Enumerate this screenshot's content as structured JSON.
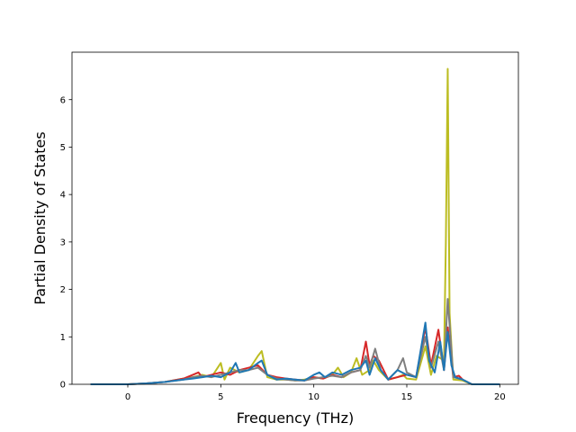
{
  "chart_data": {
    "type": "line",
    "title": "",
    "xlabel": "Frequency (THz)",
    "ylabel": "Partial Density of States",
    "xlim": [
      -3.0,
      21.0
    ],
    "ylim": [
      0,
      7.0
    ],
    "xticks": [
      0,
      5,
      10,
      15,
      20
    ],
    "yticks": [
      0,
      1,
      2,
      3,
      4,
      5,
      6
    ],
    "grid": false,
    "legend": "none",
    "series": [
      {
        "color": "#bcbd22",
        "x": [
          -2.0,
          0.0,
          1.0,
          2.0,
          3.0,
          3.5,
          4.0,
          4.5,
          5.0,
          5.2,
          5.5,
          6.0,
          6.5,
          7.0,
          7.2,
          7.5,
          8.0,
          8.5,
          9.0,
          9.5,
          10.0,
          10.5,
          11.0,
          11.3,
          11.6,
          12.0,
          12.3,
          12.6,
          13.0,
          13.2,
          13.5,
          14.0,
          14.5,
          14.8,
          15.0,
          15.5,
          16.0,
          16.3,
          16.6,
          17.0,
          17.1,
          17.2,
          17.3,
          17.5,
          18.0,
          18.5,
          20.0
        ],
        "y": [
          0,
          0,
          0.02,
          0.05,
          0.12,
          0.15,
          0.2,
          0.15,
          0.45,
          0.1,
          0.35,
          0.25,
          0.3,
          0.6,
          0.7,
          0.15,
          0.1,
          0.1,
          0.08,
          0.1,
          0.15,
          0.12,
          0.2,
          0.35,
          0.15,
          0.25,
          0.55,
          0.2,
          0.3,
          0.5,
          0.3,
          0.1,
          0.15,
          0.2,
          0.12,
          0.1,
          0.8,
          0.2,
          0.6,
          0.5,
          3.0,
          6.65,
          1.5,
          0.1,
          0.08,
          0.0,
          0
        ]
      },
      {
        "color": "#d62728",
        "x": [
          -2.0,
          0.0,
          1.0,
          2.0,
          3.0,
          3.5,
          3.8,
          4.0,
          4.5,
          5.0,
          5.5,
          6.0,
          6.5,
          7.0,
          7.5,
          8.0,
          8.5,
          9.0,
          9.5,
          10.0,
          10.5,
          11.0,
          11.5,
          12.0,
          12.5,
          12.8,
          13.0,
          13.2,
          13.5,
          14.0,
          14.5,
          15.0,
          15.5,
          16.0,
          16.3,
          16.7,
          17.0,
          17.2,
          17.5,
          17.8,
          18.0,
          18.5,
          20.0
        ],
        "y": [
          0,
          0,
          0.02,
          0.05,
          0.12,
          0.2,
          0.25,
          0.15,
          0.2,
          0.25,
          0.2,
          0.3,
          0.35,
          0.4,
          0.2,
          0.15,
          0.12,
          0.1,
          0.08,
          0.15,
          0.12,
          0.2,
          0.15,
          0.25,
          0.3,
          0.9,
          0.4,
          0.6,
          0.5,
          0.1,
          0.15,
          0.2,
          0.15,
          1.2,
          0.4,
          1.15,
          0.3,
          1.2,
          0.15,
          0.18,
          0.1,
          0.0,
          0
        ]
      },
      {
        "color": "#7f7f7f",
        "x": [
          -2.0,
          0.0,
          1.0,
          2.0,
          3.0,
          3.5,
          4.0,
          4.5,
          5.0,
          5.5,
          6.0,
          6.5,
          7.0,
          7.5,
          8.0,
          8.5,
          9.0,
          9.5,
          10.0,
          10.5,
          11.0,
          11.5,
          12.0,
          12.5,
          12.8,
          13.0,
          13.3,
          13.6,
          14.0,
          14.5,
          14.8,
          15.0,
          15.5,
          16.0,
          16.3,
          16.7,
          17.0,
          17.2,
          17.5,
          18.0,
          18.5,
          20.0
        ],
        "y": [
          0,
          0,
          0.02,
          0.05,
          0.1,
          0.15,
          0.18,
          0.15,
          0.2,
          0.25,
          0.3,
          0.3,
          0.35,
          0.2,
          0.12,
          0.1,
          0.08,
          0.08,
          0.12,
          0.15,
          0.18,
          0.15,
          0.25,
          0.3,
          0.6,
          0.35,
          0.75,
          0.3,
          0.1,
          0.3,
          0.55,
          0.25,
          0.15,
          1.0,
          0.35,
          0.9,
          0.3,
          1.8,
          0.15,
          0.1,
          0.0,
          0
        ]
      },
      {
        "color": "#1f77b4",
        "x": [
          -2.0,
          0.0,
          1.0,
          2.0,
          3.0,
          3.5,
          4.0,
          4.5,
          5.0,
          5.5,
          5.8,
          6.0,
          6.5,
          7.0,
          7.2,
          7.5,
          8.0,
          8.5,
          9.0,
          9.5,
          10.0,
          10.3,
          10.6,
          11.0,
          11.5,
          12.0,
          12.5,
          12.8,
          13.0,
          13.3,
          13.6,
          14.0,
          14.5,
          15.0,
          15.5,
          16.0,
          16.2,
          16.5,
          16.8,
          17.0,
          17.2,
          17.4,
          17.6,
          18.0,
          18.5,
          20.0
        ],
        "y": [
          0,
          0,
          0.02,
          0.05,
          0.1,
          0.12,
          0.15,
          0.18,
          0.15,
          0.25,
          0.45,
          0.25,
          0.3,
          0.45,
          0.5,
          0.2,
          0.1,
          0.12,
          0.1,
          0.08,
          0.2,
          0.25,
          0.15,
          0.25,
          0.2,
          0.3,
          0.35,
          0.5,
          0.2,
          0.55,
          0.3,
          0.1,
          0.3,
          0.2,
          0.15,
          1.3,
          0.5,
          0.25,
          0.9,
          0.3,
          1.1,
          0.4,
          0.15,
          0.1,
          0.0,
          0
        ]
      }
    ]
  }
}
